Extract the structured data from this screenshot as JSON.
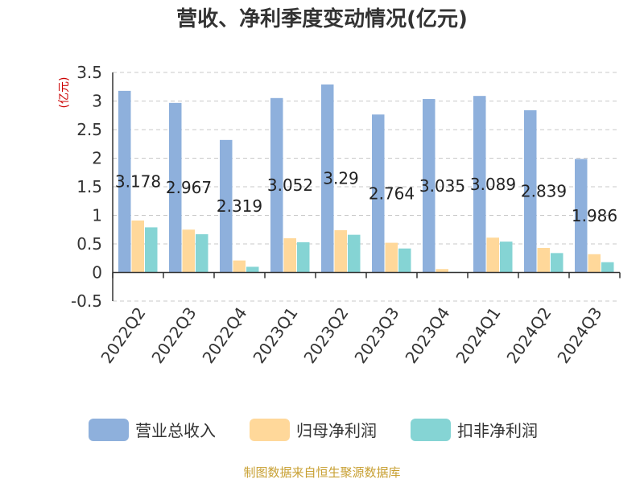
{
  "chart_data": {
    "type": "bar",
    "title": "营收、净利季度变动情况(亿元)",
    "ylabel": "(亿元)",
    "xlabel": "",
    "categories": [
      "2022Q2",
      "2022Q3",
      "2022Q4",
      "2023Q1",
      "2023Q2",
      "2023Q3",
      "2023Q4",
      "2024Q1",
      "2024Q2",
      "2024Q3"
    ],
    "series": [
      {
        "name": "营业总收入",
        "color": "#8eb0dc",
        "values": [
          3.178,
          2.967,
          2.319,
          3.052,
          3.29,
          2.764,
          3.035,
          3.089,
          2.839,
          1.986
        ],
        "show_labels": true
      },
      {
        "name": "归母净利润",
        "color": "#ffd89a",
        "values": [
          0.91,
          0.75,
          0.21,
          0.6,
          0.74,
          0.52,
          0.06,
          0.61,
          0.43,
          0.32
        ],
        "show_labels": false
      },
      {
        "name": "扣非净利润",
        "color": "#85d4d4",
        "values": [
          0.79,
          0.67,
          0.1,
          0.53,
          0.66,
          0.42,
          0.01,
          0.54,
          0.34,
          0.18
        ],
        "show_labels": false
      }
    ],
    "data_labels": [
      "3.178",
      "2.967",
      "2.319",
      "3.052",
      "3.29",
      "2.764",
      "3.035",
      "3.089",
      "2.839",
      "1.986"
    ],
    "yticks": [
      "-0.5",
      "0",
      "0.5",
      "1",
      "1.5",
      "2",
      "2.5",
      "3",
      "3.5"
    ],
    "ylim": [
      -0.5,
      3.5
    ],
    "grid": true,
    "legend_position": "bottom"
  },
  "source": "制图数据来自恒生聚源数据库"
}
